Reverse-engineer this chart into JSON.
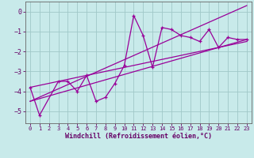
{
  "title": "",
  "xlabel": "Windchill (Refroidissement éolien,°C)",
  "ylabel": "",
  "bg_color": "#c8eaea",
  "grid_color": "#a0c8c8",
  "line_color": "#990099",
  "spine_color": "#666666",
  "tick_color": "#660066",
  "xlim": [
    -0.5,
    23.5
  ],
  "ylim": [
    -5.6,
    0.5
  ],
  "xticks": [
    0,
    1,
    2,
    3,
    4,
    5,
    6,
    7,
    8,
    9,
    10,
    11,
    12,
    13,
    14,
    15,
    16,
    17,
    18,
    19,
    20,
    21,
    22,
    23
  ],
  "yticks": [
    0,
    -1,
    -2,
    -3,
    -4,
    -5
  ],
  "series1_x": [
    0,
    1,
    3,
    4,
    5,
    6,
    7,
    8,
    9,
    10,
    11,
    12,
    13,
    14,
    15,
    16,
    17,
    18,
    19,
    20,
    21,
    22,
    23
  ],
  "series1_y": [
    -3.8,
    -5.2,
    -3.5,
    -3.5,
    -4.0,
    -3.2,
    -4.5,
    -4.3,
    -3.6,
    -2.7,
    -0.2,
    -1.2,
    -2.8,
    -0.8,
    -0.9,
    -1.2,
    -1.3,
    -1.5,
    -0.9,
    -1.8,
    -1.3,
    -1.4,
    -1.4
  ],
  "line2_x": [
    0,
    23
  ],
  "line2_y": [
    -3.8,
    -1.5
  ],
  "line3_x": [
    0,
    23
  ],
  "line3_y": [
    -4.5,
    0.3
  ],
  "line4_x": [
    0,
    23
  ],
  "line4_y": [
    -4.5,
    -1.4
  ]
}
